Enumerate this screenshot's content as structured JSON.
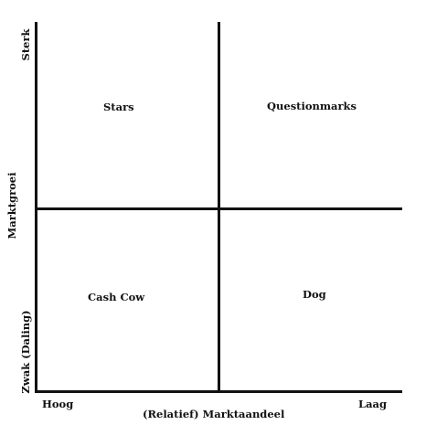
{
  "quadrants": {
    "top_left": "Stars",
    "top_right": "Questionmarks",
    "bottom_left": "Cash Cow",
    "bottom_right": "Dog"
  },
  "y_axis": {
    "title": "Marktgroei",
    "top_label": "Sterk",
    "bottom_label": "Zwak (Daling)"
  },
  "x_axis": {
    "title": "(Relatief) Marktaandeel",
    "left_label": "Hoog",
    "right_label": "Laag"
  },
  "colors": {
    "line": "#111111",
    "text": "#111111",
    "background": "#ffffff"
  }
}
